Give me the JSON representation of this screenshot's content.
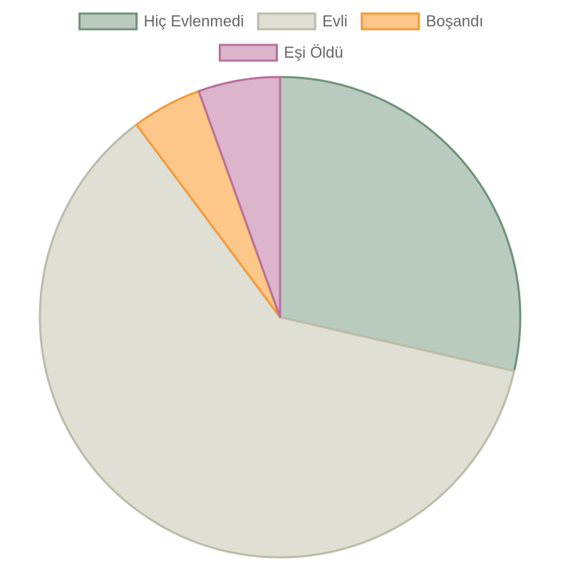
{
  "chart_data": {
    "type": "pie",
    "categories": [
      "Hiç Evlenmedi",
      "Evli",
      "Boşandı",
      "Eşi Öldü"
    ],
    "values": [
      28.6,
      61.2,
      4.7,
      5.5
    ],
    "colors": [
      "#b9cbbe",
      "#dfdfd3",
      "#fdc78a",
      "#dcb4cc"
    ],
    "border_colors": [
      "#6f937a",
      "#bdbca8",
      "#f79a36",
      "#b8709c"
    ],
    "legend": "top"
  }
}
